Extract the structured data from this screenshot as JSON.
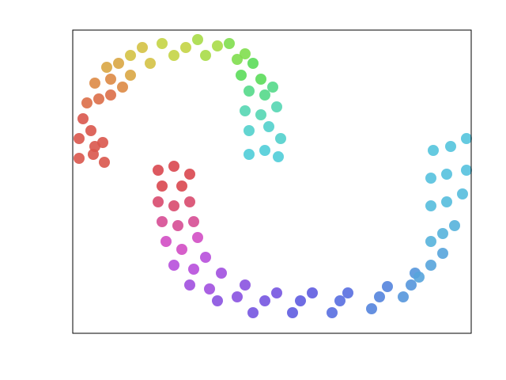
{
  "chart_data": {
    "type": "scatter",
    "xlim": [
      0,
      504
    ],
    "ylim": [
      0,
      383
    ],
    "x": [
      8,
      23,
      38,
      8,
      26,
      40,
      13,
      28,
      18,
      33,
      48,
      28,
      48,
      63,
      43,
      58,
      73,
      73,
      88,
      98,
      113,
      128,
      143,
      158,
      168,
      183,
      198,
      208,
      218,
      228,
      213,
      238,
      223,
      243,
      253,
      218,
      238,
      258,
      223,
      248,
      263,
      223,
      243,
      260,
      108,
      128,
      148,
      113,
      138,
      108,
      128,
      148,
      113,
      133,
      153,
      118,
      138,
      158,
      128,
      153,
      168,
      148,
      173,
      188,
      183,
      208,
      218,
      228,
      243,
      258,
      278,
      288,
      303,
      328,
      338,
      348,
      378,
      388,
      398,
      418,
      428,
      433,
      438,
      453,
      468,
      453,
      468,
      483,
      453,
      473,
      493,
      453,
      473,
      498,
      456,
      478,
      498
    ],
    "y": [
      246,
      256,
      241,
      221,
      226,
      216,
      271,
      236,
      291,
      296,
      301,
      316,
      321,
      311,
      336,
      341,
      326,
      351,
      361,
      341,
      366,
      351,
      361,
      371,
      351,
      363,
      366,
      346,
      353,
      341,
      326,
      321,
      306,
      301,
      311,
      281,
      276,
      286,
      256,
      261,
      246,
      226,
      231,
      223,
      206,
      211,
      201,
      186,
      186,
      166,
      161,
      166,
      141,
      136,
      141,
      116,
      106,
      121,
      86,
      81,
      96,
      61,
      56,
      76,
      41,
      46,
      61,
      26,
      41,
      51,
      26,
      41,
      51,
      26,
      41,
      51,
      31,
      46,
      59,
      46,
      61,
      76,
      71,
      86,
      101,
      116,
      126,
      136,
      161,
      166,
      176,
      196,
      201,
      206,
      231,
      236,
      246
    ],
    "colors": [
      "#d9574c",
      "#d9574c",
      "#d9574c",
      "#d9574c",
      "#d9574c",
      "#d9574c",
      "#d9574c",
      "#d9574c",
      "#dc6e48",
      "#dc6e48",
      "#dc6e48",
      "#dd8a45",
      "#dd8a45",
      "#dd8a45",
      "#d9a644",
      "#d9a644",
      "#d9a644",
      "#d4c245",
      "#d4c245",
      "#d4c245",
      "#c4d445",
      "#c4d445",
      "#c4d445",
      "#a8dc48",
      "#a8dc48",
      "#a8dc48",
      "#7fde4e",
      "#7fde4e",
      "#7fde4e",
      "#5bdc5a",
      "#5bdc5a",
      "#5bdc5a",
      "#54d98a",
      "#54d98a",
      "#54d98a",
      "#55d6b2",
      "#55d6b2",
      "#55d6b2",
      "#52d0cc",
      "#52d0cc",
      "#52d0cc",
      "#50cdd8",
      "#50cdd8",
      "#50cdd8",
      "#d9474f",
      "#d9474f",
      "#d9474f",
      "#d9474f",
      "#d9474f",
      "#d84a6e",
      "#d84a6e",
      "#d84a6e",
      "#d64c94",
      "#d64c94",
      "#d64c94",
      "#d24ec4",
      "#d24ec4",
      "#d24ec4",
      "#b74fdb",
      "#b74fdb",
      "#b74fdb",
      "#a150df",
      "#a150df",
      "#a150df",
      "#8a52e0",
      "#8a52e0",
      "#8a52e0",
      "#7555e0",
      "#7555e0",
      "#7555e0",
      "#5f5ce0",
      "#5f5ce0",
      "#5f5ce0",
      "#586ee0",
      "#586ee0",
      "#586ee0",
      "#5484dd",
      "#5484dd",
      "#5484dd",
      "#5596dc",
      "#5596dc",
      "#5596dc",
      "#56a4dc",
      "#56a4dc",
      "#56a4dc",
      "#56b3dc",
      "#56b3dc",
      "#56b3dc",
      "#55bcdd",
      "#55bcdd",
      "#55bcdd",
      "#55c1de",
      "#55c1de",
      "#55c1de",
      "#54c4dd",
      "#54c4dd",
      "#54c4dd"
    ]
  }
}
